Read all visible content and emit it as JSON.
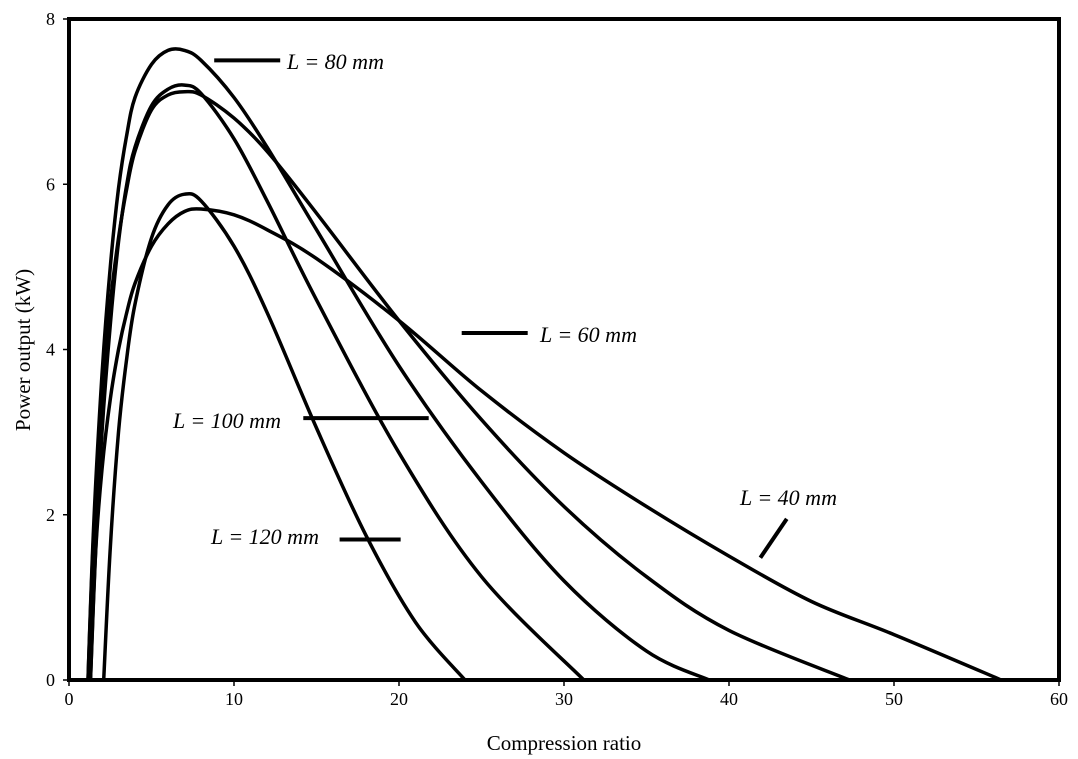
{
  "chart_data": {
    "type": "line",
    "title": "",
    "xlabel": "Compression ratio",
    "ylabel": "Power output (kW)",
    "xlim": [
      0,
      60
    ],
    "ylim": [
      0,
      8
    ],
    "xticks": [
      0,
      10,
      20,
      30,
      40,
      50,
      60
    ],
    "yticks": [
      0,
      2,
      4,
      6,
      8
    ],
    "grid": false,
    "legend": "none",
    "line_color": "#000000",
    "series": [
      {
        "x": [
          1.3,
          1.6,
          2,
          2.5,
          3,
          3.5,
          4,
          5,
          6,
          7,
          8,
          10,
          12,
          15,
          20,
          25,
          30,
          35,
          40,
          45,
          50,
          56.5
        ],
        "y": [
          0,
          1.5,
          2.55,
          3.4,
          4.0,
          4.45,
          4.8,
          5.25,
          5.52,
          5.67,
          5.7,
          5.63,
          5.45,
          5.1,
          4.35,
          3.5,
          2.75,
          2.1,
          1.5,
          0.95,
          0.55,
          0
        ]
      },
      {
        "x": [
          1.15,
          1.5,
          2,
          2.5,
          3,
          3.5,
          4,
          5,
          6,
          7,
          8,
          10,
          12,
          15,
          20,
          25,
          30,
          35,
          40,
          47.3
        ],
        "y": [
          0,
          1.8,
          3.4,
          4.55,
          5.35,
          5.95,
          6.4,
          6.9,
          7.08,
          7.12,
          7.08,
          6.8,
          6.4,
          5.65,
          4.35,
          3.15,
          2.1,
          1.25,
          0.6,
          0
        ]
      },
      {
        "x": [
          1.15,
          1.5,
          2,
          2.5,
          3,
          3.5,
          4,
          5,
          6,
          7,
          8,
          10,
          12,
          15,
          20,
          25,
          30,
          35,
          38.8
        ],
        "y": [
          0,
          1.9,
          3.7,
          5.0,
          5.95,
          6.6,
          7.05,
          7.45,
          7.62,
          7.62,
          7.5,
          7.05,
          6.45,
          5.45,
          3.8,
          2.4,
          1.2,
          0.35,
          0
        ]
      },
      {
        "x": [
          1.3,
          1.6,
          2,
          2.5,
          3,
          3.5,
          4,
          5,
          6,
          7,
          8,
          10,
          12,
          15,
          20,
          25,
          31.2
        ],
        "y": [
          0,
          1.5,
          3.0,
          4.3,
          5.3,
          6.0,
          6.45,
          6.95,
          7.15,
          7.2,
          7.1,
          6.55,
          5.8,
          4.6,
          2.75,
          1.25,
          0
        ]
      },
      {
        "x": [
          2.1,
          2.5,
          3,
          3.5,
          4,
          5,
          6,
          7,
          8,
          10,
          12,
          15,
          18,
          21,
          24
        ],
        "y": [
          0,
          1.6,
          3.0,
          3.9,
          4.55,
          5.35,
          5.75,
          5.88,
          5.8,
          5.25,
          4.45,
          3.05,
          1.75,
          0.7,
          0
        ]
      }
    ],
    "annotations": [
      {
        "text": "L = 80 mm",
        "pointer": [
          [
            8.8,
            7.5
          ],
          [
            12.8,
            7.5
          ]
        ]
      },
      {
        "text": "L = 60 mm",
        "pointer": [
          [
            23.8,
            4.2
          ],
          [
            27.8,
            4.2
          ]
        ]
      },
      {
        "text": "L = 100 mm",
        "pointer": [
          [
            14.2,
            3.17
          ],
          [
            21.8,
            3.17
          ]
        ]
      },
      {
        "text": "L = 120 mm",
        "pointer": [
          [
            16.4,
            1.7
          ],
          [
            20.1,
            1.7
          ]
        ]
      },
      {
        "text": "L = 40 mm",
        "pointer": [
          [
            41.9,
            1.48
          ],
          [
            43.5,
            1.95
          ]
        ]
      }
    ]
  }
}
